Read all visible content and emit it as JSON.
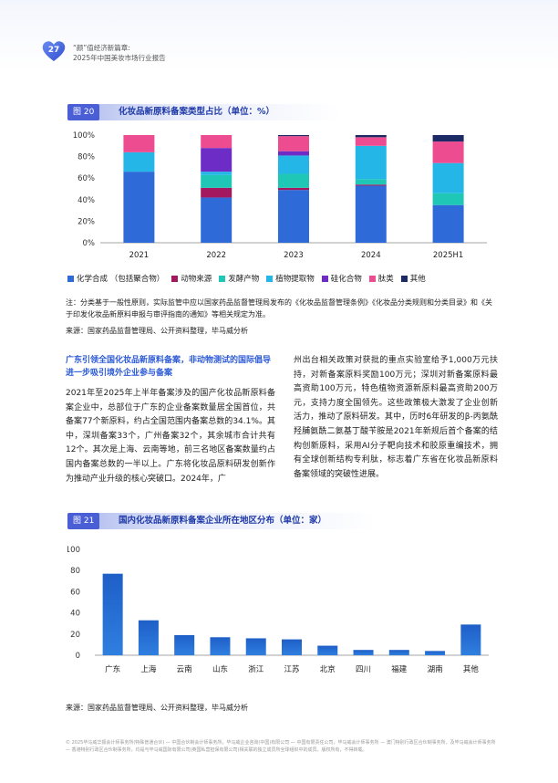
{
  "header": {
    "page_number": "27",
    "line1": "“颜”值经济新篇章:",
    "line2": "2025年中国美妆市场行业报告"
  },
  "figure20": {
    "tag": "图 20",
    "title": "化妆品新原料备案类型占比（单位：%）",
    "chart_data": {
      "type": "bar",
      "stacked": true,
      "categories": [
        "2021",
        "2022",
        "2023",
        "2024",
        "2025H1"
      ],
      "y_ticks": [
        "0%",
        "20%",
        "40%",
        "60%",
        "80%",
        "100%"
      ],
      "ylim": [
        0,
        100
      ],
      "grid": false,
      "legend_position": "bottom",
      "series": [
        {
          "name": "化学合成 （包括聚合物）",
          "color": "#2f6bd8",
          "values": [
            66,
            42,
            49,
            53,
            35
          ]
        },
        {
          "name": "动物来源",
          "color": "#a3185e",
          "values": [
            0,
            9,
            2,
            1,
            0
          ]
        },
        {
          "name": "发酵产物",
          "color": "#1fc7b7",
          "values": [
            0,
            12,
            13,
            5,
            11
          ]
        },
        {
          "name": "植物提取物",
          "color": "#25b6e8",
          "values": [
            18,
            3,
            17,
            31,
            28
          ]
        },
        {
          "name": "硅化合物",
          "color": "#6e2cc7",
          "values": [
            0,
            22,
            4,
            0,
            0
          ]
        },
        {
          "name": "肽类",
          "color": "#ee4c91",
          "values": [
            16,
            12,
            14,
            8,
            20
          ]
        },
        {
          "name": "其他",
          "color": "#1c2a66",
          "values": [
            0,
            0,
            1,
            2,
            6
          ]
        }
      ]
    }
  },
  "note": "注：分类基于一般性原则，实际监管中应以国家药品监督管理局发布的《化妆品监督管理条例》《化妆品分类规则和分类目录》和《关于印发化妆品新原料申报与审评指南的通知》等相关规定为准。",
  "source1": "来源：国家药品监督管理局、公开资料整理，毕马威分析",
  "article": {
    "heading": "广东引领全国化妆品新原料备案，非动物测试的国际倡导进一步吸引境外企业参与备案",
    "left_text": "2021年至2025年上半年备案涉及的国产化妆品新原料备案企业中，总部位于广东的企业备案数量居全国首位，共备案77个新原料，约占全国范围内备案总数的34.1%。其中，深圳备案33个，广州备案32个，其余城市合计共有12个。其次是上海、云南等地，前三名地区备案数量约占国内备案总数的一半以上。广东将化妆品原料研发创新作为推动产业升级的核心突破口。2024年，广",
    "right_text": "州出台相关政策对获批的重点实验室给予1,000万元扶持，对新备案原料奖励100万元；深圳对新备案原料最高资助100万元，特色植物资源新原料最高资助200万元，支持力度全国领先。这些政策极大激发了企业创新活力，推动了原料研发。其中，历时6年研发的β-丙氨酰羟脯氨酰二氨基丁酸苄胺是2021年新规后首个备案的结构创新原料，采用AI分子靶向技术和胶原重编技术，拥有全球创新结构专利肽，标志着广东省在化妆品新原料备案领域的突破性进展。"
  },
  "figure21": {
    "tag": "图 21",
    "title": "国内化妆品新原料备案企业所在地区分布（单位：家）",
    "chart_data": {
      "type": "bar",
      "categories": [
        "广东",
        "上海",
        "云南",
        "山东",
        "浙江",
        "江苏",
        "北京",
        "四川",
        "福建",
        "湖南",
        "其他"
      ],
      "values": [
        77,
        33,
        19,
        17,
        16,
        15,
        9,
        5,
        5,
        4,
        29
      ],
      "y_ticks": [
        "0",
        "20",
        "40",
        "60",
        "80",
        "100"
      ],
      "ylim": [
        0,
        100
      ],
      "grid": false,
      "bar_color": "#2f7fe0",
      "bar_color_top": "#1e5fc7"
    }
  },
  "source2": "来源：国家药品监督管理局、公开资料整理，毕马威分析",
  "footer": "© 2025毕马威华振会计师事务所(特殊普通合伙) — 中国合伙制会计师事务所，毕马威企业咨询(中国)有限公司 — 中国有限责任公司，毕马威会计师事务所 — 澳门特别行政区合伙制事务所，及毕马威会计师事务所 — 香港特别行政区合伙制事务所，均是与毕马威国际有限公司(英国私营担保有限公司)相关联的独立成员所全球组织中的成员。版权所有，不得转载。"
}
